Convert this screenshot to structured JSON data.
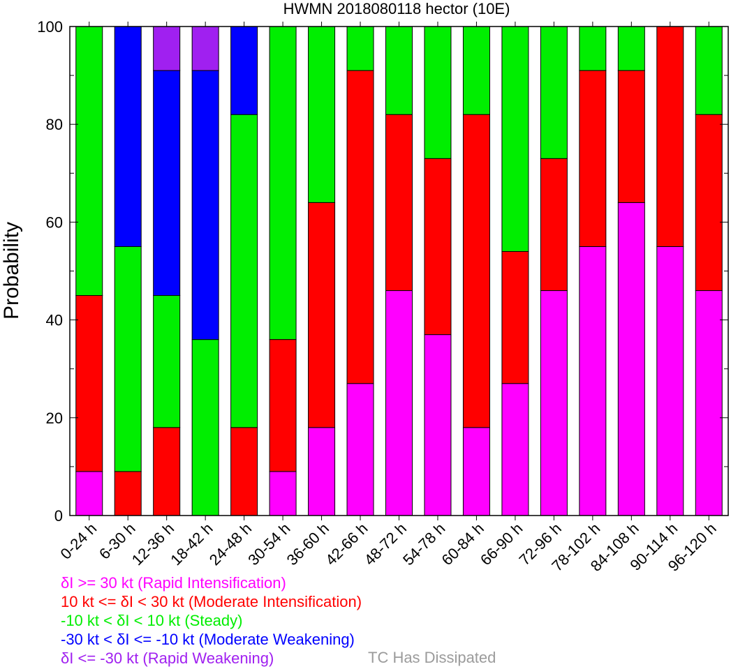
{
  "chart_data": {
    "type": "bar",
    "stacked": true,
    "title": "HWMN 2018080118 hector (10E)",
    "ylabel": "Probability",
    "xlabel": "",
    "ylim": [
      0,
      100
    ],
    "yticks": [
      0,
      20,
      40,
      60,
      80,
      100
    ],
    "categories": [
      "0-24 h",
      "6-30 h",
      "12-36 h",
      "18-42 h",
      "24-48 h",
      "30-54 h",
      "36-60 h",
      "42-66 h",
      "48-72 h",
      "54-78 h",
      "60-84 h",
      "66-90 h",
      "72-96 h",
      "78-102 h",
      "84-108 h",
      "90-114 h",
      "96-120 h"
    ],
    "series": [
      {
        "name": "δI >= 30 kt (Rapid Intensification)",
        "color": "#ff00ff",
        "values": [
          9,
          0,
          0,
          0,
          0,
          9,
          18,
          27,
          46,
          37,
          18,
          27,
          46,
          55,
          64,
          55,
          46
        ]
      },
      {
        "name": "10 kt <= δI < 30 kt (Moderate Intensification)",
        "color": "#ff0000",
        "values": [
          36,
          9,
          18,
          0,
          18,
          27,
          46,
          64,
          36,
          36,
          64,
          27,
          27,
          36,
          27,
          45,
          36
        ]
      },
      {
        "name": "-10 kt < δI < 10 kt (Steady)",
        "color": "#00ee00",
        "values": [
          55,
          46,
          27,
          36,
          64,
          64,
          36,
          9,
          18,
          27,
          18,
          46,
          27,
          9,
          9,
          0,
          18
        ]
      },
      {
        "name": "-30 kt < δI <= -10 kt (Moderate Weakening)",
        "color": "#0000ff",
        "values": [
          0,
          45,
          46,
          55,
          18,
          0,
          0,
          0,
          0,
          0,
          0,
          0,
          0,
          0,
          0,
          0,
          0
        ]
      },
      {
        "name": "δI <= -30 kt (Rapid Weakening)",
        "color": "#a020f0",
        "values": [
          0,
          0,
          9,
          9,
          0,
          0,
          0,
          0,
          0,
          0,
          0,
          0,
          0,
          0,
          0,
          0,
          0
        ]
      }
    ],
    "legend_placement": "bottom-left",
    "extra_legend": {
      "label": "TC Has Dissipated",
      "color": "#9b9b9b"
    },
    "grid": false
  }
}
